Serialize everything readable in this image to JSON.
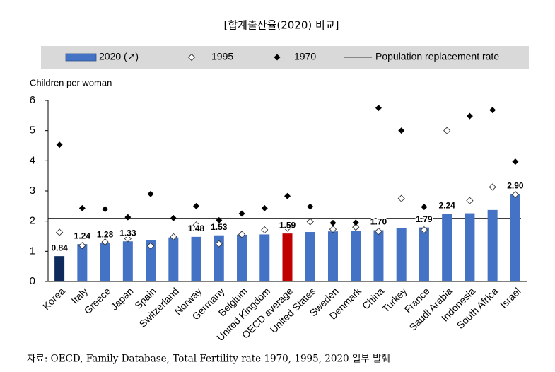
{
  "chart_data": {
    "type": "bar",
    "title": "[합계출산율(2020) 비교]",
    "y_label": "Children per woman",
    "source": "자료: OECD, Family Database, Total Fertility rate 1970, 1995, 2020 일부 발췌",
    "categories": [
      "Korea",
      "Italy",
      "Greece",
      "Japan",
      "Spain",
      "Switzerland",
      "Norway",
      "Germany",
      "Belgium",
      "United Kingdom",
      "OECD average",
      "United States",
      "Sweden",
      "Denmark",
      "China",
      "Turkey",
      "France",
      "Saudi Arabia",
      "Indonesia",
      "South Africa",
      "Israel"
    ],
    "series": [
      {
        "name": "2020 (↗)",
        "color": "#4472c4",
        "marker": "bar",
        "bar_colors": [
          "#0e2a5c",
          "#4472c4",
          "#4472c4",
          "#4472c4",
          "#4472c4",
          "#4472c4",
          "#4472c4",
          "#4472c4",
          "#4472c4",
          "#4472c4",
          "#c00000",
          "#4472c4",
          "#4472c4",
          "#4472c4",
          "#4472c4",
          "#4472c4",
          "#4472c4",
          "#4472c4",
          "#4472c4",
          "#4472c4",
          "#4472c4"
        ],
        "values": [
          0.84,
          1.24,
          1.28,
          1.33,
          1.36,
          1.46,
          1.48,
          1.53,
          1.55,
          1.56,
          1.59,
          1.64,
          1.66,
          1.67,
          1.7,
          1.76,
          1.79,
          2.24,
          2.26,
          2.37,
          2.9
        ],
        "value_labels": [
          "0.84",
          "1.24",
          "1.28",
          "1.33",
          null,
          null,
          "1.48",
          "1.53",
          null,
          null,
          "1.59",
          null,
          null,
          null,
          "1.70",
          null,
          "1.79",
          "2.24",
          null,
          null,
          "2.90"
        ]
      },
      {
        "name": "1995",
        "color": "#ffffff",
        "marker": "hollow-diamond",
        "values": [
          1.63,
          1.19,
          1.31,
          1.42,
          1.18,
          1.48,
          1.87,
          1.25,
          1.56,
          1.71,
          1.77,
          1.98,
          1.73,
          1.8,
          1.66,
          2.75,
          1.71,
          5.0,
          2.68,
          3.13,
          2.88
        ]
      },
      {
        "name": "1970",
        "color": "#000000",
        "marker": "diamond",
        "values": [
          4.53,
          2.43,
          2.4,
          2.13,
          2.9,
          2.1,
          2.5,
          2.03,
          2.25,
          2.43,
          2.83,
          2.48,
          1.94,
          1.95,
          5.75,
          5.0,
          2.47,
          null,
          5.48,
          5.68,
          3.97
        ]
      }
    ],
    "reference_line": {
      "name": "Population replacement rate",
      "value": 2.1
    },
    "ylim": [
      0,
      6
    ],
    "yticks": [
      0,
      1,
      2,
      3,
      4,
      5,
      6
    ],
    "grid": false,
    "legend": "top"
  }
}
